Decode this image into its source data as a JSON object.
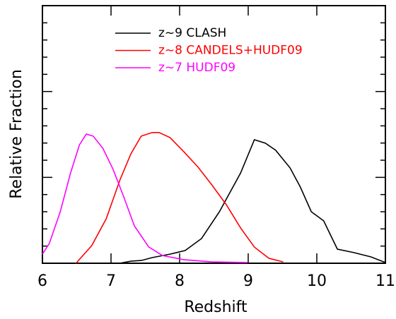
{
  "chart_data": {
    "type": "line",
    "xlabel": "Redshift",
    "ylabel": "Relative Fraction",
    "xlim": [
      6,
      11
    ],
    "xticks": [
      6,
      7,
      8,
      9,
      10,
      11
    ],
    "ylim": [
      0,
      1.5
    ],
    "yticks": [
      0,
      0.5,
      1,
      1.5
    ],
    "yminorticks": [
      0.1,
      0.2,
      0.3,
      0.4,
      0.6,
      0.7,
      0.8,
      0.9,
      1.1,
      1.2,
      1.3,
      1.4
    ],
    "series": [
      {
        "name": "z~9 CLASH",
        "color": "#000000",
        "x": [
          7.13,
          7.29,
          7.44,
          7.6,
          7.86,
          8.08,
          8.32,
          8.58,
          8.89,
          9.09,
          9.25,
          9.4,
          9.61,
          9.76,
          9.92,
          10.1,
          10.3,
          10.54,
          10.79,
          11.0
        ],
        "values": [
          0,
          0.012,
          0.016,
          0.033,
          0.053,
          0.074,
          0.144,
          0.3,
          0.526,
          0.719,
          0.699,
          0.658,
          0.555,
          0.444,
          0.3,
          0.247,
          0.082,
          0.062,
          0.037,
          0.004
        ]
      },
      {
        "name": "z~8 CANDELS+HUDF09",
        "color": "#ff0000",
        "x": [
          6.49,
          6.72,
          6.93,
          7.13,
          7.29,
          7.44,
          7.6,
          7.7,
          7.86,
          8.06,
          8.27,
          8.47,
          8.68,
          8.89,
          9.09,
          9.3,
          9.51
        ],
        "values": [
          0,
          0.103,
          0.259,
          0.485,
          0.637,
          0.74,
          0.761,
          0.761,
          0.732,
          0.65,
          0.559,
          0.456,
          0.341,
          0.205,
          0.094,
          0.029,
          0.008
        ]
      },
      {
        "name": "z~7 HUDF09",
        "color": "#ff00ff",
        "x": [
          6.0,
          6.1,
          6.26,
          6.41,
          6.54,
          6.64,
          6.74,
          6.88,
          7.03,
          7.19,
          7.34,
          7.55,
          7.75,
          8.06,
          8.47,
          8.99
        ],
        "values": [
          0.053,
          0.115,
          0.3,
          0.526,
          0.69,
          0.752,
          0.74,
          0.67,
          0.547,
          0.382,
          0.218,
          0.095,
          0.045,
          0.021,
          0.008,
          0.004
        ]
      }
    ]
  }
}
